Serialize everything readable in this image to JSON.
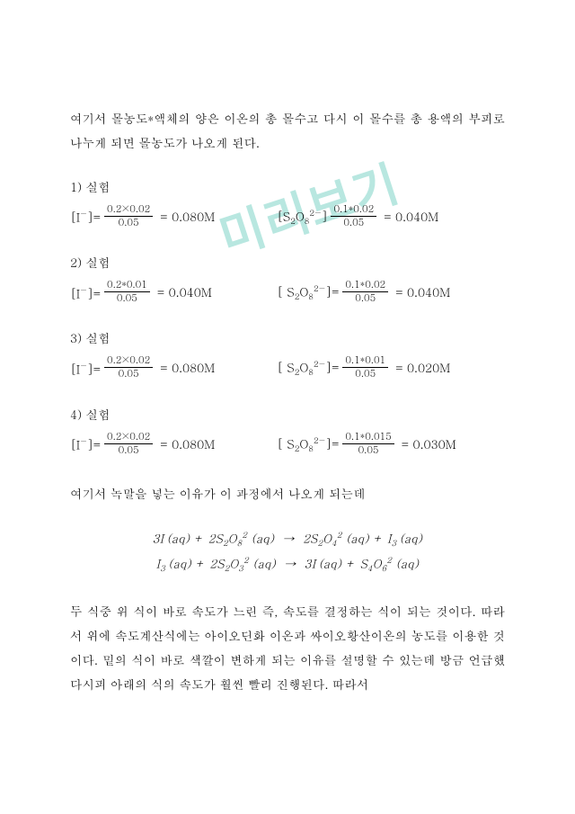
{
  "watermark": "미리보기",
  "intro": "여기서 몰농도*액체의 양은 이온의 총 몰수고 다시 이 몰수를 총 용액의 부피로 나누게 되면 몰농도가 나오게 된다.",
  "experiments": [
    {
      "title": "1) 실험",
      "left": {
        "ion_html": "[I<sup>−</sup>]=",
        "num": "0.2×0.02",
        "den": "0.05",
        "result": "= 0.080M"
      },
      "right": {
        "ion_html": "[S<sub>2</sub>O<sub>8</sub><sup>2−</sup>]",
        "num": "0.1*0.02",
        "den": "0.05",
        "result": "= 0.040M"
      }
    },
    {
      "title": "2) 실험",
      "left": {
        "ion_html": "[I<sup>−</sup>]=",
        "num": "0.2*0.01",
        "den": "0.05",
        "result": "= 0.040M"
      },
      "right": {
        "ion_html": "[ S<sub>2</sub>O<sub>8</sub><sup>2−</sup>]=",
        "num": "0.1*0.02",
        "den": "0.05",
        "result": "= 0.040M"
      }
    },
    {
      "title": "3) 실험",
      "left": {
        "ion_html": "[I<sup>−</sup>]=",
        "num": "0.2×0.02",
        "den": "0.05",
        "result": "= 0.080M"
      },
      "right": {
        "ion_html": "[ S<sub>2</sub>O<sub>8</sub><sup>2−</sup>]=",
        "num": "0.1*0.01",
        "den": "0.05",
        "result": "= 0.020M"
      }
    },
    {
      "title": "4) 실험",
      "left": {
        "ion_html": "[I<sup>−</sup>]=",
        "num": "0.2×0.02",
        "den": "0.05",
        "result": "= 0.080M"
      },
      "right": {
        "ion_html": "[ S<sub>2</sub>O<sub>8</sub><sup>2−</sup>]=",
        "num": "0.1*0.015",
        "den": "0.05",
        "result": "= 0.030M"
      }
    }
  ],
  "mid_para": "여기서 녹말을 넣는 이유가 이 과정에서 나오게 되는데",
  "chem_eqs": [
    "3I<sup>&nbsp;</sup>(aq) + 2S<sub>2</sub>O<sub>8</sub><sup>2</sup> (aq)&nbsp;&nbsp;→&nbsp;&nbsp;2S<sub>2</sub>O<sub>4</sub><sup>2</sup> (aq) + I<sub>3</sub><sup>&nbsp;</sup>(aq)",
    "I<sub>3</sub><sup>&nbsp;</sup>(aq) + 2S<sub>2</sub>O<sub>3</sub><sup>2</sup> (aq)&nbsp;&nbsp;→&nbsp;&nbsp;3I<sup>&nbsp;</sup>(aq) + S<sub>4</sub>O<sub>6</sub><sup>2</sup> (aq)"
  ],
  "end_para": "두 식중 위 식이 바로 속도가 느린 즉, 속도를 결정하는 식이 되는 것이다. 따라서 위에 속도계산식에는 아이오딘화 이온과 싸이오황산이온의 농도를 이용한 것이다. 밑의 식이 바로 색깔이 변하게 되는 이유를 설명할 수 있는데 방금 언급했다시피 아래의 식의 속도가 훨씬 빨리 진행된다. 따라서"
}
